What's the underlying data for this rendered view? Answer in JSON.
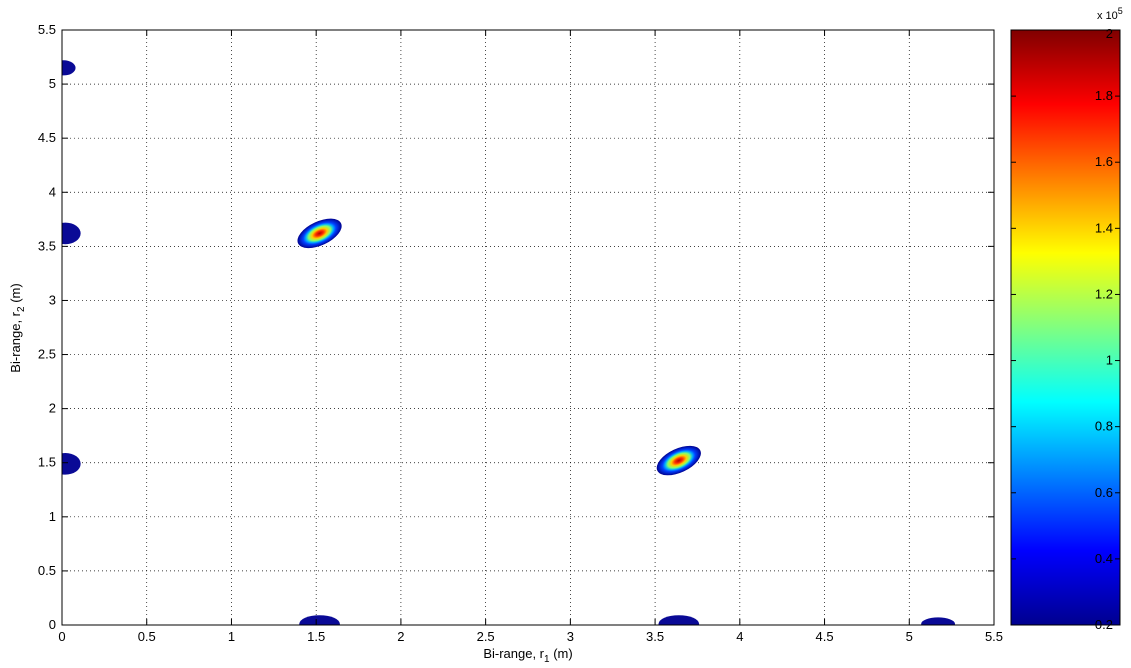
{
  "chart_data": {
    "type": "heatmap",
    "title": "",
    "xlabel": "Bi-range, r",
    "xlabel_sub": "1",
    "xlabel_unit": " (m)",
    "ylabel": "Bi-range, r",
    "ylabel_sub": "2",
    "ylabel_unit": " (m)",
    "xlim": [
      0,
      5.5
    ],
    "ylim": [
      0,
      5.5
    ],
    "x_ticks": [
      0,
      0.5,
      1,
      1.5,
      2,
      2.5,
      3,
      3.5,
      4,
      4.5,
      5,
      5.5
    ],
    "y_ticks": [
      0,
      0.5,
      1,
      1.5,
      2,
      2.5,
      3,
      3.5,
      4,
      4.5,
      5,
      5.5
    ],
    "x_tick_labels": [
      "0",
      "0.5",
      "1",
      "1.5",
      "2",
      "2.5",
      "3",
      "3.5",
      "4",
      "4.5",
      "5",
      "5.5"
    ],
    "y_tick_labels": [
      "0",
      "0.5",
      "1",
      "1.5",
      "2",
      "2.5",
      "3",
      "3.5",
      "4",
      "4.5",
      "5",
      "5.5"
    ],
    "grid": true,
    "grid_style": "dotted",
    "colormap": "jet",
    "colorbar": {
      "min": 0.2,
      "max": 2,
      "ticks": [
        0.2,
        0.4,
        0.6,
        0.8,
        1,
        1.2,
        1.4,
        1.6,
        1.8,
        2
      ],
      "tick_labels": [
        "0.2",
        "0.4",
        "0.6",
        "0.8",
        "1",
        "1.2",
        "1.4",
        "1.6",
        "1.8",
        "2"
      ],
      "exponent_base": "x 10",
      "exponent_power": "5"
    },
    "peaks": [
      {
        "x": 1.52,
        "y": 3.62,
        "value": 2.0,
        "rx": 0.14,
        "ry": 0.11,
        "angle": -25
      },
      {
        "x": 3.64,
        "y": 1.52,
        "value": 2.0,
        "rx": 0.14,
        "ry": 0.11,
        "angle": -25
      },
      {
        "x": 0.02,
        "y": 3.62,
        "value": 0.3,
        "rx": 0.09,
        "ry": 0.1,
        "angle": 0
      },
      {
        "x": 0.02,
        "y": 1.49,
        "value": 0.3,
        "rx": 0.09,
        "ry": 0.1,
        "angle": 0
      },
      {
        "x": 0.01,
        "y": 5.15,
        "value": 0.3,
        "rx": 0.07,
        "ry": 0.07,
        "angle": 0
      },
      {
        "x": 1.52,
        "y": 0.01,
        "value": 0.3,
        "rx": 0.12,
        "ry": 0.08,
        "angle": 0
      },
      {
        "x": 3.64,
        "y": 0.01,
        "value": 0.3,
        "rx": 0.12,
        "ry": 0.08,
        "angle": 0
      },
      {
        "x": 5.17,
        "y": 0.01,
        "value": 0.25,
        "rx": 0.1,
        "ry": 0.06,
        "angle": 0
      }
    ]
  }
}
